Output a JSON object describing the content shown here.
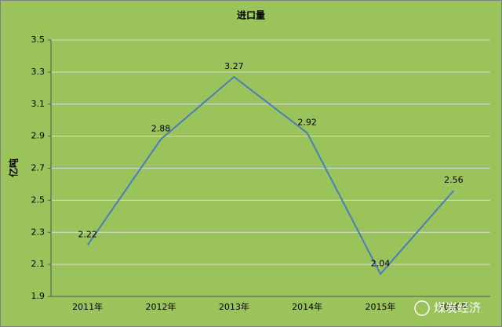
{
  "chart_data": {
    "type": "line",
    "title": "进口量",
    "y_label": "亿吨",
    "categories": [
      "2011年",
      "2012年",
      "2013年",
      "2014年",
      "2015年",
      "2016年"
    ],
    "series": [
      {
        "name": "进口量",
        "color": "#4a7ebb",
        "values": [
          2.22,
          2.88,
          3.27,
          2.92,
          2.04,
          2.56
        ]
      }
    ],
    "ylim": [
      1.9,
      3.5
    ],
    "yticks": [
      1.9,
      2.1,
      2.3,
      2.5,
      2.7,
      2.9,
      3.1,
      3.3,
      3.5
    ],
    "grid": true,
    "watermark": "煤炭经济"
  }
}
